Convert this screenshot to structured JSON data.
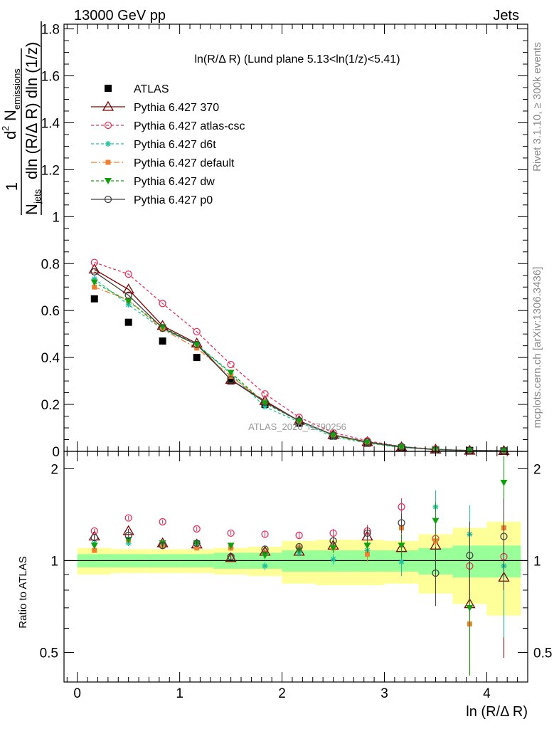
{
  "header": {
    "left": "13000 GeV pp",
    "right": "Jets"
  },
  "side_texts": {
    "rivet": "Rivet 3.1.10, ≥ 300k events",
    "mcplots": "mcplots.cern.ch [arXiv:1306.3436]"
  },
  "watermark": "ATLAS_2020_I1790256",
  "chart_data": {
    "type": "line",
    "title": "ln(R/Δ R) (Lund plane 5.13<ln(1/z)<5.41)",
    "xlabel": "ln (R/Δ R)",
    "ylabel": "1/N_jets d²N_emissions / dln(R/Δ R) dln(1/z)",
    "ylabel_parts": {
      "one": "1",
      "n": "N",
      "jets": "jets",
      "dln": "dln (R/Δ R) dln (1/z)",
      "d2": "d",
      "sq": "2",
      "nem": "N",
      "emissions": "emissions"
    },
    "ratio_ylabel": "Ratio to ATLAS",
    "xlim": [
      -0.13,
      4.4
    ],
    "ylim": [
      0,
      1.82
    ],
    "ratio_ylim": [
      0.4,
      2.28
    ],
    "x_ticks": [
      "0",
      "1",
      "2",
      "3",
      "4"
    ],
    "y_ticks": [
      "0",
      "0.2",
      "0.4",
      "0.6",
      "0.8",
      "1",
      "1.2",
      "1.4",
      "1.6",
      "1.8"
    ],
    "ratio_y_ticks": [
      "0.5",
      "1",
      "2"
    ],
    "x": [
      0.167,
      0.5,
      0.833,
      1.167,
      1.5,
      1.833,
      2.167,
      2.5,
      2.833,
      3.167,
      3.5,
      3.833,
      4.167
    ],
    "x_edges": [
      0,
      0.333,
      0.667,
      1,
      1.333,
      1.667,
      2,
      2.333,
      2.667,
      3,
      3.333,
      3.667,
      4,
      4.333
    ],
    "data": {
      "name": "ATLAS",
      "values": [
        0.65,
        0.55,
        0.47,
        0.4,
        0.3,
        0.2,
        0.12,
        0.065,
        0.035,
        0.015,
        0.007,
        0.004,
        0.002
      ],
      "band_inner": [
        0.05,
        0.05,
        0.05,
        0.05,
        0.06,
        0.06,
        0.08,
        0.08,
        0.08,
        0.08,
        0.1,
        0.12,
        0.12
      ],
      "band_outer": [
        0.1,
        0.09,
        0.09,
        0.09,
        0.1,
        0.11,
        0.16,
        0.17,
        0.17,
        0.16,
        0.22,
        0.28,
        0.34
      ]
    },
    "series": [
      {
        "name": "Pythia 6.427 370",
        "color": "#800000",
        "dash": "",
        "marker": "triangle-open",
        "values": [
          0.775,
          0.69,
          0.535,
          0.46,
          0.305,
          0.215,
          0.13,
          0.07,
          0.04,
          0.018,
          0.008,
          0.003,
          0.0018
        ],
        "ratio": [
          1.2,
          1.25,
          1.14,
          1.13,
          1.02,
          1.07,
          1.07,
          1.12,
          1.2,
          1.1,
          1.12,
          0.72,
          0.88
        ],
        "rerr": [
          0.02,
          0.02,
          0.02,
          0.02,
          0.02,
          0.03,
          0.03,
          0.04,
          0.06,
          0.1,
          0.2,
          0.3,
          0.4
        ]
      },
      {
        "name": "Pythia 6.427 atlas-csc",
        "color": "#e8305a",
        "dash": "4,3",
        "marker": "circle-open",
        "values": [
          0.805,
          0.755,
          0.63,
          0.51,
          0.37,
          0.245,
          0.145,
          0.08,
          0.045,
          0.02,
          0.009,
          0.0035,
          0.002
        ],
        "ratio": [
          1.25,
          1.38,
          1.34,
          1.27,
          1.23,
          1.22,
          1.21,
          1.23,
          1.25,
          1.5,
          1.18,
          0.96,
          1.03
        ],
        "rerr": [
          0.02,
          0.02,
          0.02,
          0.02,
          0.02,
          0.03,
          0.03,
          0.04,
          0.06,
          0.1,
          0.2,
          0.3,
          0.4
        ]
      },
      {
        "name": "Pythia 6.427 d6t",
        "color": "#20c0a0",
        "dash": "4,3",
        "marker": "star",
        "values": [
          0.735,
          0.625,
          0.52,
          0.455,
          0.33,
          0.19,
          0.125,
          0.062,
          0.035,
          0.016,
          0.009,
          0.003,
          0.0017
        ],
        "ratio": [
          1.14,
          1.14,
          1.12,
          1.13,
          1.1,
          0.96,
          1.06,
          1.01,
          1.08,
          0.99,
          1.5,
          1.22,
          0.96
        ],
        "rerr": [
          0.02,
          0.02,
          0.02,
          0.02,
          0.02,
          0.03,
          0.03,
          0.04,
          0.06,
          0.1,
          0.2,
          0.3,
          0.4
        ]
      },
      {
        "name": "Pythia 6.427 default",
        "color": "#f08030",
        "dash": "8,3,2,3",
        "marker": "square",
        "values": [
          0.7,
          0.645,
          0.52,
          0.44,
          0.32,
          0.21,
          0.13,
          0.068,
          0.036,
          0.019,
          0.008,
          0.0024,
          0.002
        ],
        "ratio": [
          1.08,
          1.17,
          1.12,
          1.1,
          1.1,
          1.06,
          1.1,
          1.1,
          1.05,
          1.28,
          1.16,
          0.62,
          1.28
        ],
        "rerr": [
          0.02,
          0.02,
          0.02,
          0.02,
          0.02,
          0.03,
          0.03,
          0.04,
          0.06,
          0.1,
          0.2,
          0.3,
          0.4
        ]
      },
      {
        "name": "Pythia 6.427 dw",
        "color": "#10a010",
        "dash": "4,3",
        "marker": "triangle-down",
        "values": [
          0.72,
          0.64,
          0.53,
          0.455,
          0.335,
          0.205,
          0.13,
          0.068,
          0.038,
          0.017,
          0.009,
          0.003,
          0.0035
        ],
        "ratio": [
          1.12,
          1.17,
          1.14,
          1.14,
          1.12,
          1.04,
          1.08,
          1.1,
          1.12,
          1.12,
          1.35,
          0.7,
          1.8
        ],
        "rerr": [
          0.02,
          0.02,
          0.02,
          0.02,
          0.02,
          0.03,
          0.03,
          0.04,
          0.06,
          0.1,
          0.2,
          0.3,
          0.4
        ]
      },
      {
        "name": "Pythia 6.427 p0",
        "color": "#404040",
        "dash": "",
        "marker": "circle-open",
        "values": [
          0.765,
          0.665,
          0.525,
          0.455,
          0.305,
          0.21,
          0.13,
          0.07,
          0.04,
          0.02,
          0.0065,
          0.0042,
          0.0025
        ],
        "ratio": [
          1.19,
          1.21,
          1.12,
          1.14,
          1.03,
          1.09,
          1.11,
          1.16,
          1.23,
          1.33,
          0.91,
          1.04,
          1.2
        ],
        "rerr": [
          0.02,
          0.02,
          0.02,
          0.02,
          0.02,
          0.03,
          0.03,
          0.04,
          0.06,
          0.1,
          0.2,
          0.3,
          0.4
        ]
      }
    ],
    "legend": {
      "position": "top-left"
    },
    "grid": false
  }
}
